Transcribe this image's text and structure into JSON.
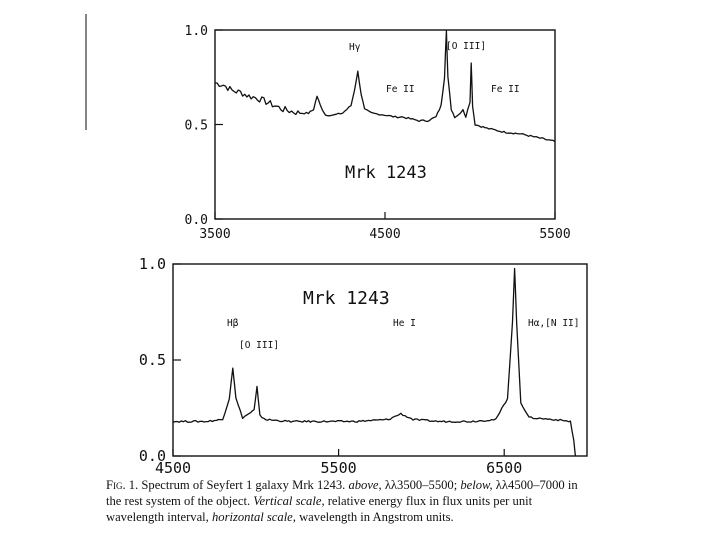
{
  "chart_data": [
    {
      "type": "line",
      "title": "Mrk 1243",
      "xlabel": "",
      "ylabel": "",
      "xlim": [
        3500,
        5500
      ],
      "ylim": [
        0.0,
        1.0
      ],
      "x_ticks": [
        3500,
        4500,
        5500
      ],
      "x_tick_labels": [
        "3500",
        "4500",
        "5500"
      ],
      "y_ticks": [
        0.0,
        0.5,
        1.0
      ],
      "y_tick_labels": [
        "0.0",
        "0.5",
        "1.0"
      ],
      "grid": false,
      "annotations": [
        "Hγ",
        "Fe II",
        "[O III]",
        "Fe II"
      ],
      "series": [
        {
          "x": [
            3500,
            3550,
            3600,
            3650,
            3700,
            3750,
            3800,
            3850,
            3900,
            3950,
            4000,
            4050,
            4080,
            4100,
            4120,
            4150,
            4200,
            4250,
            4300,
            4320,
            4340,
            4360,
            4380,
            4420,
            4500,
            4560,
            4600,
            4650,
            4700,
            4750,
            4800,
            4830,
            4850,
            4861,
            4870,
            4890,
            4910,
            4930,
            4959,
            4975,
            5000,
            5007,
            5015,
            5030,
            5100,
            5150,
            5200,
            5300,
            5400,
            5500
          ],
          "y": [
            0.72,
            0.71,
            0.68,
            0.67,
            0.65,
            0.64,
            0.62,
            0.6,
            0.58,
            0.57,
            0.56,
            0.56,
            0.58,
            0.65,
            0.6,
            0.55,
            0.55,
            0.56,
            0.6,
            0.68,
            0.78,
            0.66,
            0.58,
            0.56,
            0.55,
            0.54,
            0.54,
            0.53,
            0.52,
            0.52,
            0.54,
            0.6,
            0.75,
            1.0,
            0.75,
            0.58,
            0.54,
            0.55,
            0.58,
            0.54,
            0.62,
            0.83,
            0.6,
            0.5,
            0.48,
            0.47,
            0.46,
            0.45,
            0.43,
            0.41
          ]
        }
      ]
    },
    {
      "type": "line",
      "title": "Mrk 1243",
      "xlabel": "",
      "ylabel": "",
      "xlim": [
        4500,
        7000
      ],
      "ylim": [
        0.0,
        1.0
      ],
      "x_ticks": [
        4500,
        5500,
        6500
      ],
      "x_tick_labels": [
        "4500",
        "5500",
        "6500"
      ],
      "y_ticks": [
        0.0,
        0.5,
        1.0
      ],
      "y_tick_labels": [
        "0.0",
        "0.5",
        "1.0"
      ],
      "grid": false,
      "annotations": [
        "Hβ",
        "[O III]",
        "He I",
        "Hα,[N II]"
      ],
      "series": [
        {
          "x": [
            4500,
            4600,
            4700,
            4800,
            4840,
            4861,
            4880,
            4920,
            4959,
            4990,
            5007,
            5025,
            5060,
            5200,
            5400,
            5600,
            5800,
            5876,
            5950,
            6100,
            6300,
            6450,
            6520,
            6550,
            6563,
            6575,
            6600,
            6650,
            6800,
            6900,
            6920,
            6930
          ],
          "y": [
            0.18,
            0.18,
            0.18,
            0.19,
            0.3,
            0.46,
            0.3,
            0.2,
            0.22,
            0.24,
            0.36,
            0.21,
            0.19,
            0.18,
            0.18,
            0.18,
            0.19,
            0.22,
            0.19,
            0.18,
            0.18,
            0.19,
            0.3,
            0.7,
            0.98,
            0.7,
            0.28,
            0.2,
            0.19,
            0.18,
            0.08,
            0.0
          ]
        }
      ]
    }
  ],
  "caption": {
    "lead": "Fig. 1.",
    "text1": " Spectrum of Seyfert 1 galaxy Mrk 1243. ",
    "above": "above,",
    "text2": " λλ3500–5500; ",
    "below": "below,",
    "text3": " λλ4500–7000 in the rest system of the object. ",
    "vscale": "Vertical scale,",
    "text4": " relative energy flux in flux units per unit wavelength interval, ",
    "hscale": "horizontal scale,",
    "text5": " wavelength in Angstrom units."
  }
}
